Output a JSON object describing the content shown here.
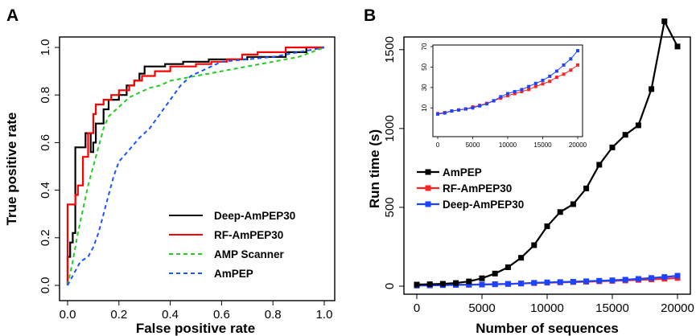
{
  "chart_data": [
    {
      "panel": "A",
      "type": "line",
      "xlabel": "False positive rate",
      "ylabel": "True positive rate",
      "xlim": [
        0,
        1
      ],
      "ylim": [
        0,
        1
      ],
      "xticks": [
        "0.0",
        "0.2",
        "0.4",
        "0.6",
        "0.8",
        "1.0"
      ],
      "yticks": [
        "0.0",
        "0.2",
        "0.4",
        "0.6",
        "0.8",
        "1.0"
      ],
      "grid": false,
      "legend_position": "bottom-right",
      "series": [
        {
          "name": "Deep-AmPEP30",
          "color": "#000000",
          "dash": "solid",
          "points": [
            [
              0,
              0
            ],
            [
              0,
              0.12
            ],
            [
              0.01,
              0.12
            ],
            [
              0.01,
              0.18
            ],
            [
              0.02,
              0.18
            ],
            [
              0.02,
              0.22
            ],
            [
              0.03,
              0.22
            ],
            [
              0.03,
              0.58
            ],
            [
              0.07,
              0.58
            ],
            [
              0.07,
              0.64
            ],
            [
              0.09,
              0.64
            ],
            [
              0.09,
              0.56
            ],
            [
              0.1,
              0.56
            ],
            [
              0.1,
              0.6
            ],
            [
              0.11,
              0.6
            ],
            [
              0.11,
              0.68
            ],
            [
              0.14,
              0.68
            ],
            [
              0.14,
              0.74
            ],
            [
              0.16,
              0.74
            ],
            [
              0.16,
              0.78
            ],
            [
              0.2,
              0.78
            ],
            [
              0.2,
              0.8
            ],
            [
              0.23,
              0.8
            ],
            [
              0.23,
              0.84
            ],
            [
              0.26,
              0.84
            ],
            [
              0.26,
              0.86
            ],
            [
              0.28,
              0.86
            ],
            [
              0.28,
              0.89
            ],
            [
              0.3,
              0.89
            ],
            [
              0.3,
              0.92
            ],
            [
              0.38,
              0.92
            ],
            [
              0.38,
              0.93
            ],
            [
              0.45,
              0.93
            ],
            [
              0.45,
              0.94
            ],
            [
              0.55,
              0.94
            ],
            [
              0.55,
              0.95
            ],
            [
              0.7,
              0.95
            ],
            [
              0.7,
              0.96
            ],
            [
              0.85,
              0.96
            ],
            [
              0.85,
              0.98
            ],
            [
              0.93,
              0.98
            ],
            [
              0.93,
              1.0
            ],
            [
              1.0,
              1.0
            ]
          ]
        },
        {
          "name": "RF-AmPEP30",
          "color": "#ff0000",
          "dash": "solid",
          "points": [
            [
              0,
              0
            ],
            [
              0,
              0.34
            ],
            [
              0.03,
              0.34
            ],
            [
              0.03,
              0.38
            ],
            [
              0.04,
              0.38
            ],
            [
              0.04,
              0.42
            ],
            [
              0.06,
              0.42
            ],
            [
              0.06,
              0.54
            ],
            [
              0.08,
              0.54
            ],
            [
              0.08,
              0.64
            ],
            [
              0.1,
              0.64
            ],
            [
              0.1,
              0.72
            ],
            [
              0.11,
              0.72
            ],
            [
              0.11,
              0.76
            ],
            [
              0.14,
              0.76
            ],
            [
              0.14,
              0.78
            ],
            [
              0.17,
              0.78
            ],
            [
              0.17,
              0.8
            ],
            [
              0.2,
              0.8
            ],
            [
              0.2,
              0.82
            ],
            [
              0.24,
              0.82
            ],
            [
              0.24,
              0.84
            ],
            [
              0.26,
              0.84
            ],
            [
              0.26,
              0.86
            ],
            [
              0.29,
              0.86
            ],
            [
              0.29,
              0.88
            ],
            [
              0.34,
              0.88
            ],
            [
              0.34,
              0.9
            ],
            [
              0.4,
              0.9
            ],
            [
              0.4,
              0.92
            ],
            [
              0.5,
              0.92
            ],
            [
              0.5,
              0.93
            ],
            [
              0.56,
              0.93
            ],
            [
              0.56,
              0.94
            ],
            [
              0.62,
              0.94
            ],
            [
              0.62,
              0.95
            ],
            [
              0.68,
              0.95
            ],
            [
              0.68,
              0.97
            ],
            [
              0.74,
              0.97
            ],
            [
              0.74,
              0.98
            ],
            [
              0.85,
              0.98
            ],
            [
              0.85,
              1.0
            ],
            [
              1.0,
              1.0
            ]
          ]
        },
        {
          "name": "AMP Scanner",
          "color": "#22cc22",
          "dash": "dashed",
          "points": [
            [
              0,
              0
            ],
            [
              0.02,
              0.1
            ],
            [
              0.04,
              0.22
            ],
            [
              0.06,
              0.32
            ],
            [
              0.08,
              0.42
            ],
            [
              0.1,
              0.5
            ],
            [
              0.12,
              0.58
            ],
            [
              0.14,
              0.66
            ],
            [
              0.16,
              0.71
            ],
            [
              0.2,
              0.75
            ],
            [
              0.24,
              0.79
            ],
            [
              0.28,
              0.81
            ],
            [
              0.32,
              0.83
            ],
            [
              0.36,
              0.84
            ],
            [
              0.4,
              0.86
            ],
            [
              0.45,
              0.87
            ],
            [
              0.5,
              0.88
            ],
            [
              0.55,
              0.89
            ],
            [
              0.6,
              0.9
            ],
            [
              0.7,
              0.92
            ],
            [
              0.8,
              0.94
            ],
            [
              0.9,
              0.96
            ],
            [
              0.95,
              0.98
            ],
            [
              1.0,
              1.0
            ]
          ]
        },
        {
          "name": "AmPEP",
          "color": "#1a55ff",
          "dash": "dashed",
          "points": [
            [
              0,
              0
            ],
            [
              0.03,
              0.06
            ],
            [
              0.05,
              0.1
            ],
            [
              0.08,
              0.12
            ],
            [
              0.1,
              0.16
            ],
            [
              0.12,
              0.22
            ],
            [
              0.14,
              0.3
            ],
            [
              0.16,
              0.38
            ],
            [
              0.18,
              0.46
            ],
            [
              0.2,
              0.52
            ],
            [
              0.24,
              0.57
            ],
            [
              0.28,
              0.62
            ],
            [
              0.32,
              0.66
            ],
            [
              0.36,
              0.72
            ],
            [
              0.4,
              0.78
            ],
            [
              0.44,
              0.84
            ],
            [
              0.48,
              0.88
            ],
            [
              0.52,
              0.9
            ],
            [
              0.56,
              0.92
            ],
            [
              0.6,
              0.94
            ],
            [
              0.7,
              0.95
            ],
            [
              0.8,
              0.96
            ],
            [
              0.9,
              0.98
            ],
            [
              0.95,
              0.99
            ],
            [
              1.0,
              1.0
            ]
          ]
        }
      ]
    },
    {
      "panel": "B",
      "type": "line",
      "xlabel": "Number of sequences",
      "ylabel": "Run time (s)",
      "xlim": [
        0,
        20000
      ],
      "ylim": [
        0,
        1560
      ],
      "xticks": [
        "0",
        "5000",
        "10000",
        "15000",
        "20000"
      ],
      "yticks": [
        "0",
        "500",
        "1000",
        "1500"
      ],
      "grid": false,
      "legend_position": "center-left",
      "x": [
        0,
        1000,
        2000,
        3000,
        4000,
        5000,
        6000,
        7000,
        8000,
        9000,
        10000,
        11000,
        12000,
        13000,
        14000,
        15000,
        16000,
        17000,
        18000,
        19000,
        20000
      ],
      "series": [
        {
          "name": "AmPEP",
          "color": "#000000",
          "values": [
            10,
            12,
            15,
            20,
            30,
            50,
            80,
            120,
            180,
            260,
            380,
            470,
            520,
            620,
            770,
            880,
            960,
            1020,
            1250,
            1680,
            1520
          ]
        },
        {
          "name": "RF-AmPEP30",
          "color": "#ff2222",
          "values": [
            4.5,
            5.5,
            7,
            8,
            9,
            11,
            12.5,
            14.5,
            17,
            19.5,
            22,
            24,
            26,
            28,
            31,
            33.5,
            36,
            40,
            43,
            47,
            52
          ]
        },
        {
          "name": "Deep-AmPEP30",
          "color": "#1a44ff",
          "values": [
            4,
            5,
            7,
            8,
            9,
            10,
            12,
            14,
            17,
            21,
            24,
            26,
            28,
            31,
            34,
            37,
            41,
            46,
            52,
            58,
            66
          ]
        }
      ],
      "inset": {
        "xlim": [
          0,
          20000
        ],
        "ylim": [
          0,
          70
        ],
        "xticks": [
          "0",
          "5000",
          "10000",
          "15000",
          "20000"
        ],
        "yticks": [
          "10",
          "30",
          "50",
          "70"
        ]
      }
    }
  ],
  "panel_labels": {
    "a": "A",
    "b": "B"
  }
}
